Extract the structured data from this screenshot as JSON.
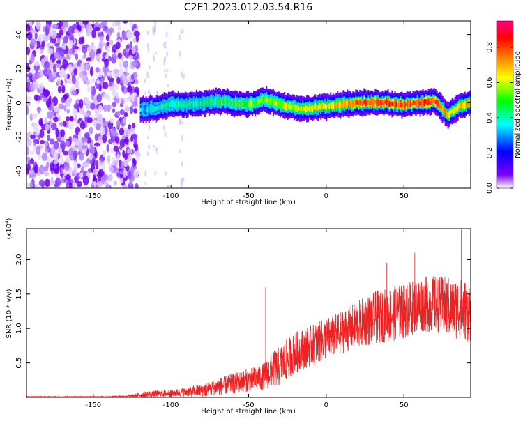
{
  "title": "C2E1.2023.012.03.54.R16",
  "chart_data": [
    {
      "type": "heatmap",
      "xlabel": "Height of straight line (km)",
      "ylabel": "Frequency (Hz)",
      "xlim": [
        -193,
        93
      ],
      "ylim": [
        -50,
        48
      ],
      "xticks": [
        -150,
        -100,
        -50,
        0,
        50
      ],
      "xtick_labels": [
        "-150",
        "-100",
        "-50",
        "0",
        "50"
      ],
      "yticks": [
        -40,
        -20,
        0,
        20,
        40
      ],
      "ytick_labels": [
        "-40",
        "-20",
        "0",
        "20",
        "40"
      ],
      "colorbar": {
        "label": "Normalized spectral amplitude",
        "range": [
          0,
          0.95
        ],
        "ticks": [
          0.0,
          0.2,
          0.4,
          0.6,
          0.8
        ],
        "tick_labels": [
          "0.0",
          "0.2",
          "0.4",
          "0.6",
          "0.8"
        ],
        "colors": [
          "#ffffff",
          "#7b00ff",
          "#0000ff",
          "#00ffff",
          "#00ff00",
          "#ffff00",
          "#ff8000",
          "#ff0000",
          "#ff0088"
        ]
      },
      "noise_region": {
        "x": [
          -193,
          -121
        ],
        "note_level": 0.3
      },
      "signal_band": {
        "x": [
          -120,
          -110,
          -100,
          -90,
          -80,
          -70,
          -60,
          -50,
          -40,
          -30,
          -20,
          -10,
          0,
          10,
          20,
          30,
          40,
          50,
          60,
          70,
          78,
          85,
          93
        ],
        "y": [
          -4,
          -3,
          -1,
          -1,
          0,
          1,
          0,
          -1,
          2,
          -1,
          -3,
          -3,
          -2,
          -1,
          0,
          0,
          0,
          -1,
          0,
          1,
          -7,
          -2,
          0
        ],
        "amplitude": [
          0.35,
          0.4,
          0.45,
          0.45,
          0.45,
          0.5,
          0.5,
          0.55,
          0.55,
          0.6,
          0.65,
          0.7,
          0.7,
          0.75,
          0.8,
          0.85,
          0.85,
          0.8,
          0.85,
          0.85,
          0.7,
          0.7,
          0.75
        ]
      }
    },
    {
      "type": "line",
      "xlabel": "Height of straight line (km)",
      "ylabel": "SNR (10 * v/v)",
      "scale_note": "(x10",
      "scale_exp": "4",
      "scale_close": ")",
      "xlim": [
        -193,
        93
      ],
      "ylim": [
        0,
        2.45
      ],
      "xticks": [
        -150,
        -100,
        -50,
        0,
        50
      ],
      "xtick_labels": [
        "-150",
        "-100",
        "-50",
        "0",
        "50"
      ],
      "yticks": [
        0.5,
        1.0,
        1.5,
        2.0
      ],
      "ytick_labels": [
        "0.5",
        "1.0",
        "1.5",
        "2.0"
      ],
      "color": "#ee2222",
      "series": [
        {
          "x": [
            -193,
            -180,
            -160,
            -140,
            -125,
            -118,
            -110,
            -100,
            -90,
            -80,
            -70,
            -60,
            -50,
            -40,
            -35,
            -30,
            -25,
            -20,
            -10,
            0,
            10,
            20,
            30,
            40,
            50,
            60,
            70,
            80,
            88,
            93
          ],
          "y": [
            0.01,
            0.01,
            0.01,
            0.01,
            0.02,
            0.04,
            0.05,
            0.06,
            0.08,
            0.1,
            0.15,
            0.2,
            0.25,
            0.3,
            0.4,
            0.45,
            0.55,
            0.65,
            0.75,
            0.85,
            0.95,
            1.05,
            1.15,
            1.2,
            1.25,
            1.35,
            1.35,
            1.3,
            1.28,
            1.25
          ],
          "spread": [
            0.005,
            0.005,
            0.005,
            0.005,
            0.02,
            0.04,
            0.05,
            0.05,
            0.07,
            0.1,
            0.12,
            0.15,
            0.17,
            0.2,
            0.25,
            0.3,
            0.3,
            0.3,
            0.3,
            0.3,
            0.32,
            0.35,
            0.38,
            0.4,
            0.4,
            0.4,
            0.42,
            0.45,
            0.45,
            0.45
          ]
        }
      ],
      "spikes": [
        {
          "x": -39,
          "y": 1.6
        },
        {
          "x": 39,
          "y": 1.95
        },
        {
          "x": 57,
          "y": 2.1
        },
        {
          "x": 87,
          "y": 2.45
        }
      ]
    }
  ]
}
